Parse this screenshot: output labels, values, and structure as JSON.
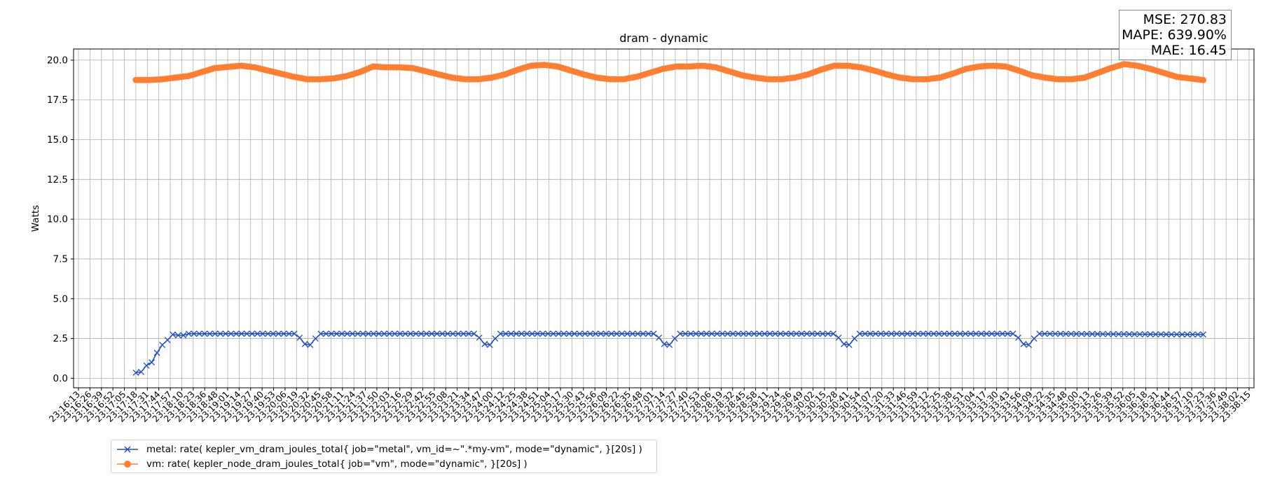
{
  "chart_data": {
    "type": "line",
    "title": "dram - dynamic",
    "xlabel": "",
    "ylabel": "Watts",
    "ylim": [
      -0.6,
      20.7
    ],
    "yticks": [
      "0.0",
      "2.5",
      "5.0",
      "7.5",
      "10.0",
      "12.5",
      "15.0",
      "17.5",
      "20.0"
    ],
    "ytick_values": [
      0,
      2.5,
      5,
      7.5,
      10,
      12.5,
      15,
      17.5,
      20
    ],
    "grid": true,
    "legend_position": "bottom-left (below axes)",
    "x_tick_labels": [
      "23:16:13",
      "23:16:26",
      "23:16:39",
      "23:16:52",
      "23:17:05",
      "23:17:18",
      "23:17:31",
      "23:17:44",
      "23:17:57",
      "23:18:10",
      "23:18:23",
      "23:18:36",
      "23:18:48",
      "23:19:01",
      "23:19:14",
      "23:19:27",
      "23:19:40",
      "23:19:53",
      "23:20:06",
      "23:20:19",
      "23:20:32",
      "23:20:45",
      "23:20:58",
      "23:21:11",
      "23:21:24",
      "23:21:37",
      "23:21:50",
      "23:22:03",
      "23:22:16",
      "23:22:29",
      "23:22:42",
      "23:22:55",
      "23:23:08",
      "23:23:21",
      "23:23:34",
      "23:23:47",
      "23:24:00",
      "23:24:12",
      "23:24:25",
      "23:24:38",
      "23:24:51",
      "23:25:04",
      "23:25:17",
      "23:25:30",
      "23:25:43",
      "23:25:56",
      "23:26:09",
      "23:26:22",
      "23:26:35",
      "23:26:48",
      "23:27:01",
      "23:27:14",
      "23:27:27",
      "23:27:40",
      "23:27:53",
      "23:28:06",
      "23:28:19",
      "23:28:32",
      "23:28:45",
      "23:28:58",
      "23:29:11",
      "23:29:24",
      "23:29:36",
      "23:29:49",
      "23:30:02",
      "23:30:15",
      "23:30:28",
      "23:30:41",
      "23:30:54",
      "23:31:07",
      "23:31:20",
      "23:31:33",
      "23:31:46",
      "23:31:59",
      "23:32:12",
      "23:32:25",
      "23:32:38",
      "23:32:51",
      "23:33:04",
      "23:33:17",
      "23:33:30",
      "23:33:43",
      "23:33:56",
      "23:34:09",
      "23:34:22",
      "23:34:35",
      "23:34:48",
      "23:35:00",
      "23:35:13",
      "23:35:26",
      "23:35:39",
      "23:35:52",
      "23:36:05",
      "23:36:18",
      "23:36:31",
      "23:36:44",
      "23:36:57",
      "23:37:10",
      "23:37:23",
      "23:37:36",
      "23:37:49",
      "23:38:02",
      "23:38:15"
    ],
    "series": [
      {
        "name": "metal: rate( kepler_vm_dram_joules_total{ job=\"metal\", vm_id=~\".*my-vm\", mode=\"dynamic\", }[20s] )",
        "color": "#1f4fbf",
        "marker": "x",
        "x_range": [
          "23:17:18",
          "23:37:23"
        ],
        "anchors": [
          [
            0,
            0.35
          ],
          [
            1,
            0.4
          ],
          [
            2,
            0.8
          ],
          [
            3,
            1.0
          ],
          [
            4,
            1.6
          ],
          [
            5,
            2.1
          ],
          [
            6,
            2.4
          ],
          [
            7,
            2.75
          ],
          [
            8,
            2.7
          ],
          [
            9,
            2.7
          ],
          [
            10,
            2.8
          ],
          [
            30,
            2.8
          ],
          [
            31,
            2.55
          ],
          [
            32,
            2.15
          ],
          [
            33,
            2.1
          ],
          [
            34,
            2.5
          ],
          [
            35,
            2.8
          ],
          [
            64,
            2.8
          ],
          [
            65,
            2.55
          ],
          [
            66,
            2.15
          ],
          [
            67,
            2.1
          ],
          [
            68,
            2.5
          ],
          [
            69,
            2.8
          ],
          [
            98,
            2.8
          ],
          [
            99,
            2.55
          ],
          [
            100,
            2.15
          ],
          [
            101,
            2.1
          ],
          [
            102,
            2.5
          ],
          [
            103,
            2.8
          ],
          [
            132,
            2.8
          ],
          [
            133,
            2.55
          ],
          [
            134,
            2.15
          ],
          [
            135,
            2.1
          ],
          [
            136,
            2.5
          ],
          [
            137,
            2.8
          ],
          [
            166,
            2.8
          ],
          [
            167,
            2.55
          ],
          [
            168,
            2.15
          ],
          [
            169,
            2.1
          ],
          [
            170,
            2.5
          ],
          [
            171,
            2.8
          ],
          [
            202,
            2.75
          ]
        ]
      },
      {
        "name": "vm: rate( kepler_node_dram_joules_total{ job=\"vm\", mode=\"dynamic\", }[20s] )",
        "color": "#ff7f32",
        "marker": "o",
        "x_range": [
          "23:17:18",
          "23:37:23"
        ],
        "anchors": [
          [
            0,
            18.75
          ],
          [
            5,
            18.75
          ],
          [
            10,
            18.8
          ],
          [
            15,
            18.9
          ],
          [
            20,
            19.0
          ],
          [
            25,
            19.25
          ],
          [
            30,
            19.5
          ],
          [
            40,
            19.65
          ],
          [
            45,
            19.55
          ],
          [
            50,
            19.35
          ],
          [
            55,
            19.15
          ],
          [
            60,
            18.95
          ],
          [
            65,
            18.8
          ],
          [
            70,
            18.8
          ],
          [
            75,
            18.85
          ],
          [
            80,
            19.0
          ],
          [
            85,
            19.25
          ],
          [
            90,
            19.6
          ],
          [
            95,
            19.55
          ],
          [
            100,
            19.55
          ],
          [
            105,
            19.5
          ],
          [
            110,
            19.3
          ],
          [
            115,
            19.1
          ],
          [
            120,
            18.9
          ],
          [
            125,
            18.8
          ],
          [
            130,
            18.8
          ],
          [
            135,
            18.9
          ],
          [
            140,
            19.1
          ],
          [
            145,
            19.4
          ],
          [
            150,
            19.65
          ],
          [
            155,
            19.7
          ],
          [
            160,
            19.6
          ],
          [
            165,
            19.35
          ],
          [
            170,
            19.1
          ],
          [
            175,
            18.9
          ],
          [
            180,
            18.8
          ],
          [
            185,
            18.8
          ],
          [
            190,
            18.95
          ],
          [
            195,
            19.2
          ],
          [
            200,
            19.45
          ],
          [
            205,
            19.6
          ],
          [
            210,
            19.6
          ],
          [
            215,
            19.65
          ],
          [
            220,
            19.55
          ],
          [
            225,
            19.3
          ],
          [
            230,
            19.05
          ],
          [
            235,
            18.9
          ],
          [
            240,
            18.8
          ],
          [
            245,
            18.8
          ],
          [
            250,
            18.9
          ],
          [
            255,
            19.1
          ],
          [
            260,
            19.4
          ],
          [
            265,
            19.65
          ],
          [
            270,
            19.65
          ],
          [
            275,
            19.55
          ],
          [
            280,
            19.35
          ],
          [
            285,
            19.1
          ],
          [
            290,
            18.9
          ],
          [
            295,
            18.8
          ],
          [
            300,
            18.8
          ],
          [
            305,
            18.9
          ],
          [
            310,
            19.15
          ],
          [
            315,
            19.45
          ],
          [
            320,
            19.6
          ],
          [
            325,
            19.65
          ],
          [
            330,
            19.6
          ],
          [
            335,
            19.35
          ],
          [
            340,
            19.05
          ],
          [
            345,
            18.9
          ],
          [
            350,
            18.8
          ],
          [
            355,
            18.8
          ],
          [
            360,
            18.9
          ],
          [
            365,
            19.2
          ],
          [
            370,
            19.5
          ],
          [
            375,
            19.75
          ],
          [
            380,
            19.65
          ],
          [
            385,
            19.45
          ],
          [
            390,
            19.2
          ],
          [
            395,
            18.95
          ],
          [
            400,
            18.85
          ],
          [
            405,
            18.75
          ]
        ]
      }
    ]
  },
  "metrics": {
    "mse": "MSE: 270.83",
    "mape": "MAPE: 639.90%",
    "mae": "MAE: 16.45"
  }
}
